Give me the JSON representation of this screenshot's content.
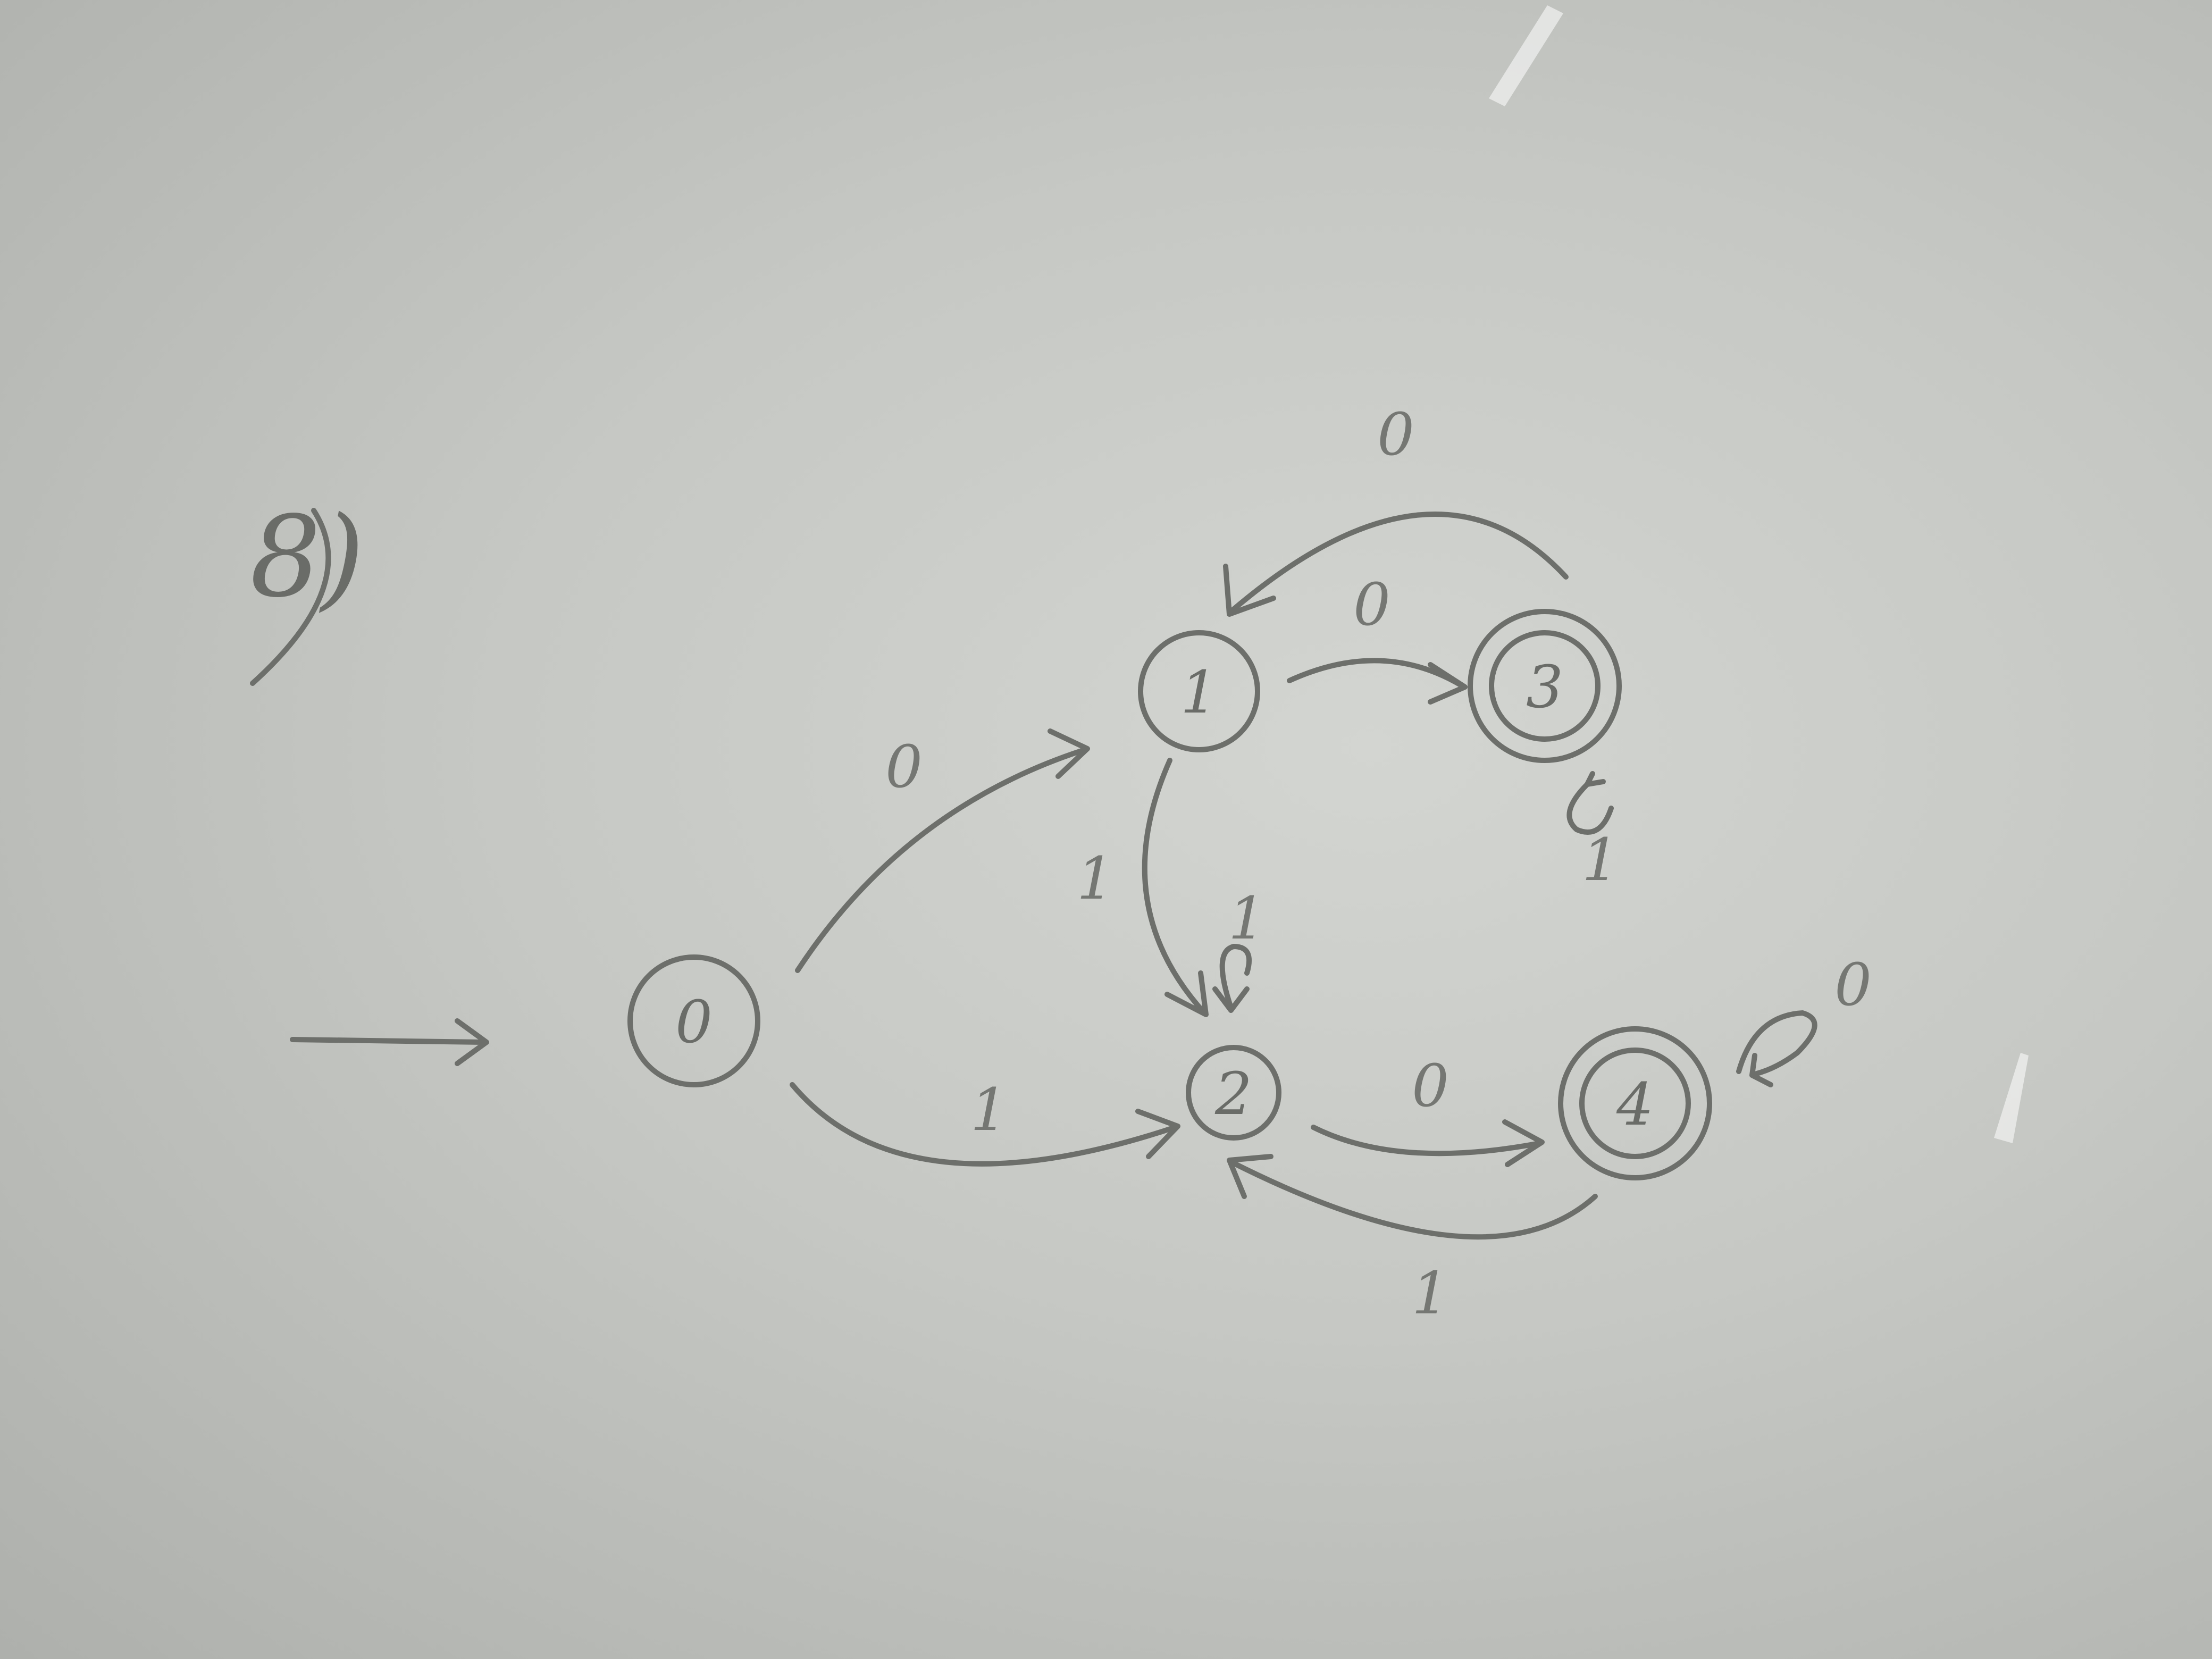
{
  "problem": {
    "label": "8)"
  },
  "states": [
    {
      "id": "q0",
      "label": "0",
      "accepting": false,
      "start": true
    },
    {
      "id": "q1",
      "label": "1",
      "accepting": false,
      "start": false
    },
    {
      "id": "q2",
      "label": "2",
      "accepting": false,
      "start": false
    },
    {
      "id": "q3",
      "label": "3",
      "accepting": true,
      "start": false
    },
    {
      "id": "q4",
      "label": "4",
      "accepting": true,
      "start": false
    }
  ],
  "transitions": [
    {
      "from": "0",
      "to": "1",
      "symbol": "0"
    },
    {
      "from": "0",
      "to": "2",
      "symbol": "1"
    },
    {
      "from": "1",
      "to": "3",
      "symbol": "0"
    },
    {
      "from": "1",
      "to": "2",
      "symbol": "1"
    },
    {
      "from": "3",
      "to": "1",
      "symbol": "0"
    },
    {
      "from": "3",
      "to": "3",
      "symbol": "1"
    },
    {
      "from": "2",
      "to": "2",
      "symbol": "1"
    },
    {
      "from": "2",
      "to": "4",
      "symbol": "0"
    },
    {
      "from": "4",
      "to": "2",
      "symbol": "1"
    },
    {
      "from": "4",
      "to": "4",
      "symbol": "0"
    }
  ],
  "colors": {
    "background": "#c9cbc7",
    "ink": "#6d6f6b"
  }
}
